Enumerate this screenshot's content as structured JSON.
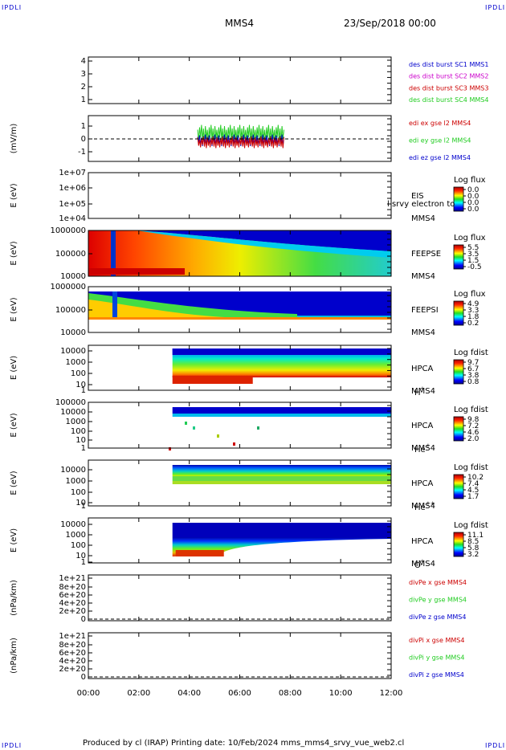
{
  "corner_label": "IPDLI",
  "header": {
    "spacecraft": "MMS4",
    "datetime": "23/Sep/2018 00:00"
  },
  "footer": {
    "text": "Produced by cl (IRAP)   Printing date: 10/Feb/2024   mms_mms4_srvy_vue_web2.cl"
  },
  "colors": {
    "red": "#cc0000",
    "green": "#22cc22",
    "blue": "#0000cc",
    "magenta": "#cc00cc"
  },
  "chart_data": {
    "type": "spectrogram",
    "xlim": [
      "00:00",
      "12:00"
    ],
    "x_ticks": [
      "00:00",
      "02:00",
      "04:00",
      "06:00",
      "08:00",
      "10:00",
      "12:00"
    ],
    "panels": [
      {
        "id": "p1",
        "ylabel": "",
        "yticks": [
          "4",
          "3",
          "2",
          "1"
        ],
        "legend": [
          {
            "text": "des dist burst SC1 MMS1",
            "color": "#0000cc"
          },
          {
            "text": "des dist burst SC2 MMS2",
            "color": "#cc00cc"
          },
          {
            "text": "des dist burst SC3 MMS3",
            "color": "#cc0000"
          },
          {
            "text": "des dist burst SC4 MMS4",
            "color": "#22cc22"
          }
        ]
      },
      {
        "id": "p2",
        "ylabel": "(mV/m)",
        "yticks": [
          "1",
          "0",
          "-1"
        ],
        "data_window": [
          "04:20",
          "07:45"
        ],
        "legend": [
          {
            "text": "edi ex gse l2 MMS4",
            "color": "#cc0000"
          },
          {
            "text": "edi ey gse l2 MMS4",
            "color": "#22cc22"
          },
          {
            "text": "edi ez gse l2 MMS4",
            "color": "#0000cc"
          }
        ]
      },
      {
        "id": "p3",
        "ylabel": "E (eV)",
        "yticks": [
          "1e+07",
          "1e+06",
          "1e+05",
          "1e+04"
        ],
        "instrument": [
          "EIS",
          "MMS4"
        ],
        "overlay": "l srvy electron to",
        "cb_title": "Log flux",
        "cb_ticks": [
          "0.0",
          "0.0",
          "0.0",
          "0.0"
        ]
      },
      {
        "id": "p4",
        "ylabel": "E (eV)",
        "yticks": [
          "1000000",
          "100000",
          "10000"
        ],
        "instrument": [
          "FEEPSE",
          "MMS4"
        ],
        "cb_title": "Log flux",
        "cb_ticks": [
          "5.5",
          "3.5",
          "1.5",
          "-0.5"
        ]
      },
      {
        "id": "p5",
        "ylabel": "E (eV)",
        "yticks": [
          "1000000",
          "100000",
          "10000"
        ],
        "instrument": [
          "FEEPSI",
          "MMS4"
        ],
        "cb_title": "Log flux",
        "cb_ticks": [
          "4.9",
          "3.3",
          "1.8",
          "0.2"
        ]
      },
      {
        "id": "p6",
        "ylabel": "E (eV)",
        "yticks": [
          "10000",
          "1000",
          "100",
          "10",
          "1"
        ],
        "instrument": [
          "HPCA",
          "MMS4"
        ],
        "species": "H",
        "species_sup": "+",
        "cb_title": "Log fdist",
        "cb_ticks": [
          "9.7",
          "6.7",
          "3.8",
          "0.8"
        ],
        "data_start": "03:20"
      },
      {
        "id": "p7",
        "ylabel": "E (eV)",
        "yticks": [
          "100000",
          "10000",
          "1000",
          "100",
          "10",
          "1"
        ],
        "instrument": [
          "HPCA",
          "MMS4"
        ],
        "species": "He",
        "species_sup": "+",
        "cb_title": "Log fdist",
        "cb_ticks": [
          "9.8",
          "7.2",
          "4.6",
          "2.0"
        ],
        "data_start": "03:20"
      },
      {
        "id": "p8",
        "ylabel": "E (eV)",
        "yticks": [
          "10000",
          "1000",
          "100",
          "10",
          "1"
        ],
        "instrument": [
          "HPCA",
          "MMS4"
        ],
        "species": "He",
        "species_sup": "++",
        "cb_title": "Log fdist",
        "cb_ticks": [
          "10.2",
          "7.4",
          "4.5",
          "1.7"
        ],
        "data_start": "03:20"
      },
      {
        "id": "p9",
        "ylabel": "E (eV)",
        "yticks": [
          "10000",
          "1000",
          "100",
          "10",
          "1"
        ],
        "instrument": [
          "HPCA",
          "MMS4"
        ],
        "species": "O",
        "species_sup": "+",
        "cb_title": "Log fdist",
        "cb_ticks": [
          "11.1",
          "8.5",
          "5.8",
          "3.2"
        ],
        "data_start": "03:20"
      },
      {
        "id": "p10",
        "ylabel": "(nPa/km)",
        "yticks": [
          "1e+21",
          "8e+20",
          "6e+20",
          "4e+20",
          "2e+20",
          "0"
        ],
        "legend": [
          {
            "text": "divPe x gse MMS4",
            "color": "#cc0000"
          },
          {
            "text": "divPe y gse MMS4",
            "color": "#22cc22"
          },
          {
            "text": "divPe z gse MMS4",
            "color": "#0000cc"
          }
        ]
      },
      {
        "id": "p11",
        "ylabel": "(nPa/km)",
        "yticks": [
          "1e+21",
          "8e+20",
          "6e+20",
          "4e+20",
          "2e+20",
          "0"
        ],
        "legend": [
          {
            "text": "divPi x gse MMS4",
            "color": "#cc0000"
          },
          {
            "text": "divPi y gse MMS4",
            "color": "#22cc22"
          },
          {
            "text": "divPi z gse MMS4",
            "color": "#0000cc"
          }
        ]
      }
    ]
  }
}
